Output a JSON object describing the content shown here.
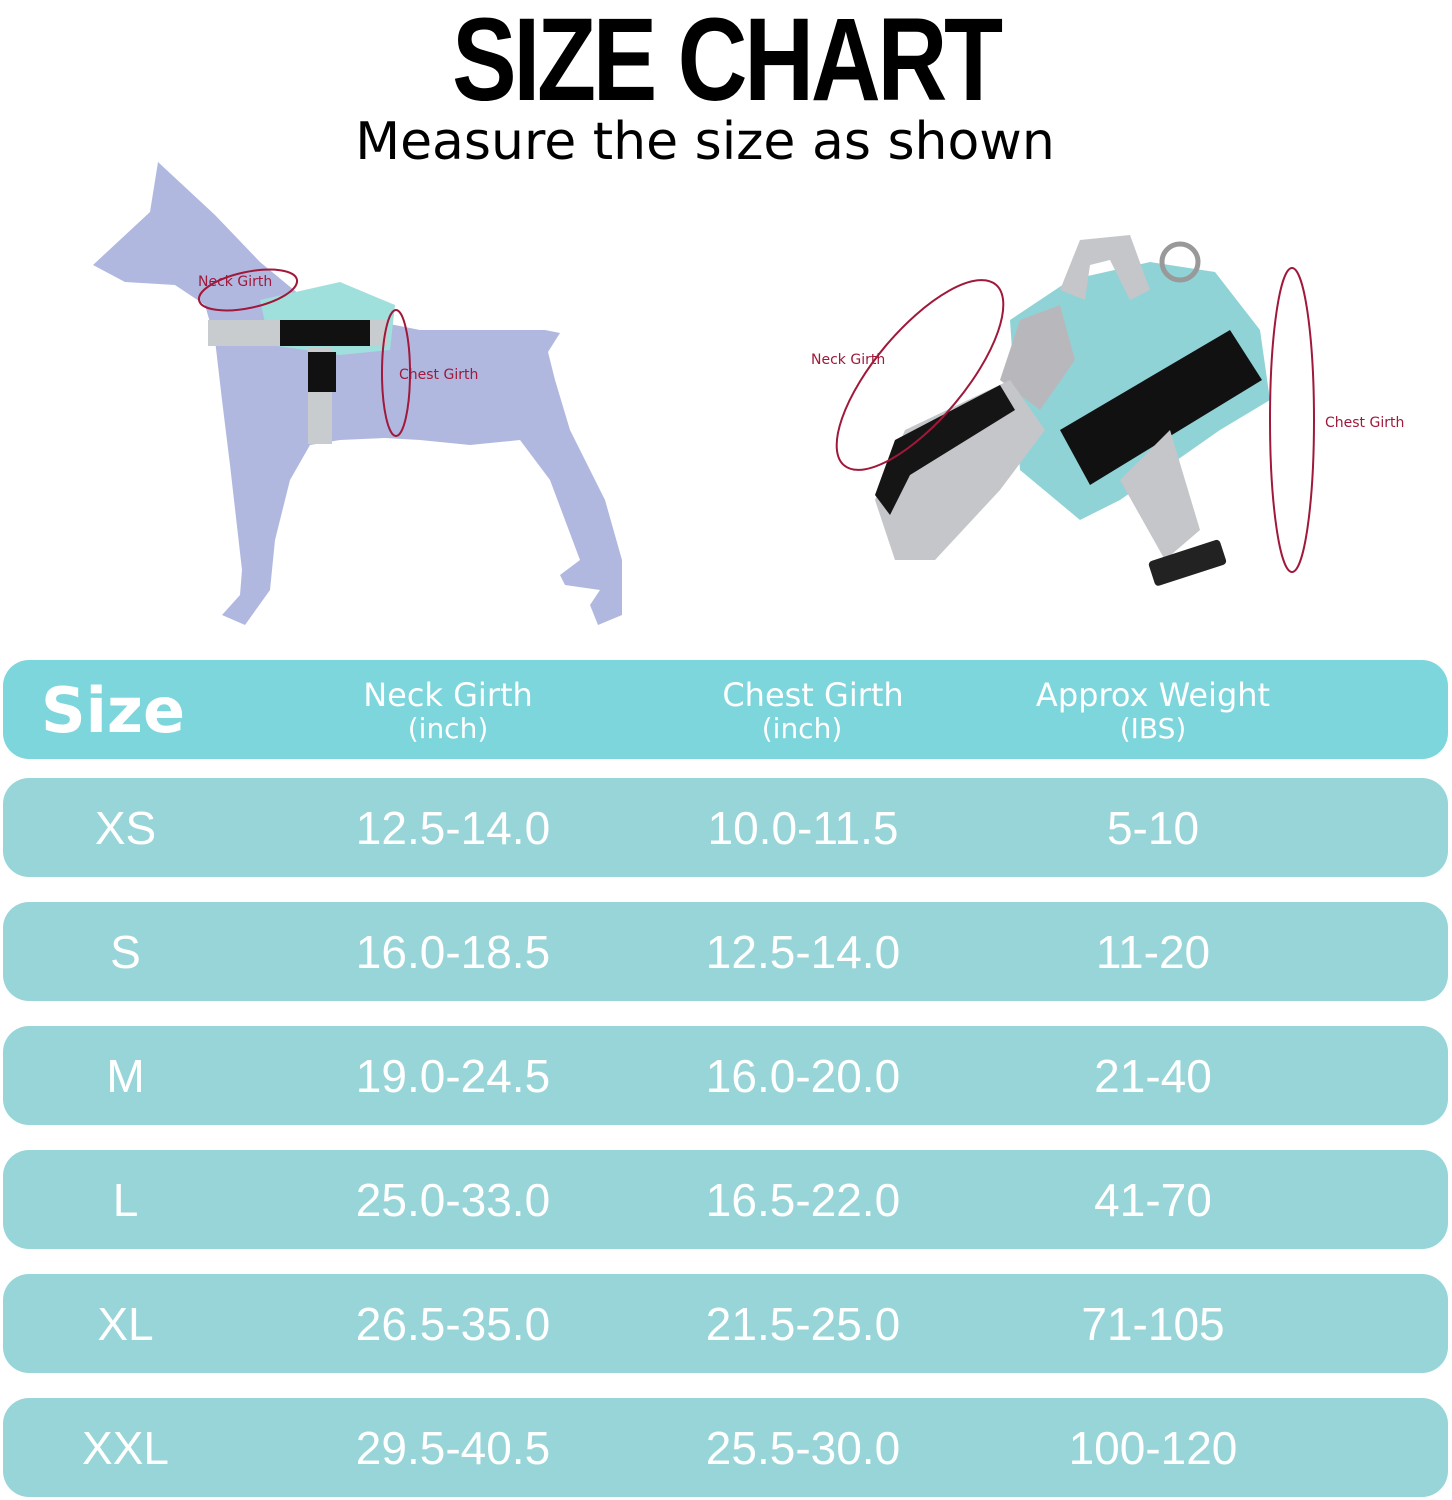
{
  "title": "SIZE CHART",
  "subtitle": "Measure the size as shown",
  "diagram": {
    "dog_labels": {
      "neck": "Neck Girth",
      "chest": "Chest Girth"
    },
    "harness_labels": {
      "neck": "Neck Girth",
      "chest": "Chest Girth"
    }
  },
  "colors": {
    "header": "#7dd6dc",
    "row": "#98d5d8",
    "dog": "#b0b8e0",
    "measure_line": "#a0183a",
    "harness": "#8fd3d6"
  },
  "table": {
    "headers": [
      {
        "label": "Size"
      },
      {
        "label": "Neck Girth",
        "unit": "(inch)"
      },
      {
        "label": "Chest Girth",
        "unit": "(inch)"
      },
      {
        "label": "Approx Weight",
        "unit": "(IBS)"
      }
    ],
    "rows": [
      [
        "XS",
        "12.5-14.0",
        "10.0-11.5",
        "5-10"
      ],
      [
        "S",
        "16.0-18.5",
        "12.5-14.0",
        "11-20"
      ],
      [
        "M",
        "19.0-24.5",
        "16.0-20.0",
        "21-40"
      ],
      [
        "L",
        "25.0-33.0",
        "16.5-22.0",
        "41-70"
      ],
      [
        "XL",
        "26.5-35.0",
        "21.5-25.0",
        "71-105"
      ],
      [
        "XXL",
        "29.5-40.5",
        "25.5-30.0",
        "100-120"
      ]
    ]
  }
}
